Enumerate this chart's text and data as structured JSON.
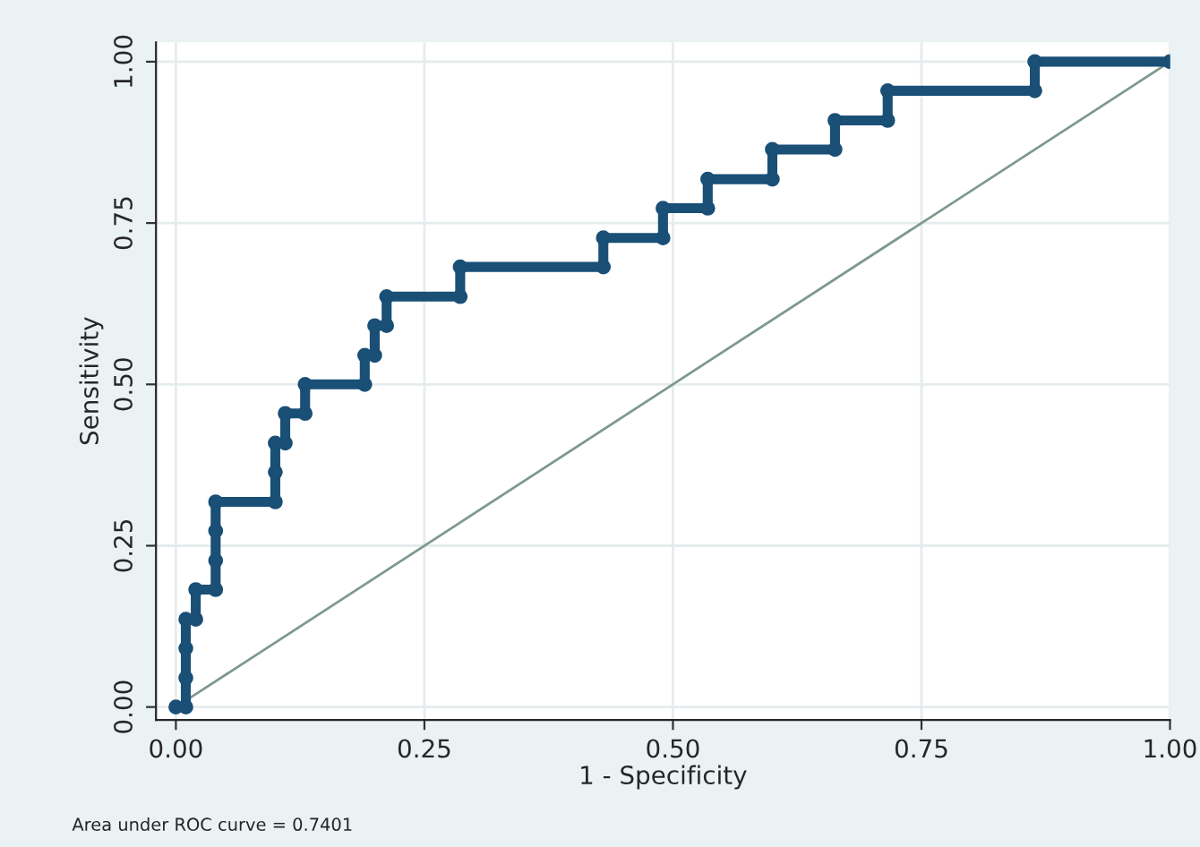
{
  "chart_data": {
    "type": "line",
    "xlabel": "1 - Specificity",
    "ylabel": "Sensitivity",
    "xlim": [
      -0.02,
      1.0
    ],
    "ylim": [
      -0.02,
      1.03
    ],
    "xticks": [
      {
        "value": 0,
        "label": "0.00"
      },
      {
        "value": 0.25,
        "label": "0.25"
      },
      {
        "value": 0.5,
        "label": "0.50"
      },
      {
        "value": 0.75,
        "label": "0.75"
      },
      {
        "value": 1,
        "label": "1.00"
      }
    ],
    "yticks": [
      {
        "value": 0,
        "label": "0.00"
      },
      {
        "value": 0.25,
        "label": "0.25"
      },
      {
        "value": 0.5,
        "label": "0.50"
      },
      {
        "value": 0.75,
        "label": "0.75"
      },
      {
        "value": 1,
        "label": "1.00"
      }
    ],
    "grid": true,
    "legend": false,
    "series": [
      {
        "color": "#1a4f76",
        "marker": "circle",
        "x": [
          0,
          0.01,
          0.01,
          0.01,
          0.01,
          0.02,
          0.02,
          0.04,
          0.04,
          0.04,
          0.04,
          0.1,
          0.1,
          0.1,
          0.11,
          0.11,
          0.13,
          0.13,
          0.19,
          0.19,
          0.2,
          0.2,
          0.212,
          0.212,
          0.286,
          0.286,
          0.43,
          0.43,
          0.49,
          0.49,
          0.535,
          0.535,
          0.6,
          0.6,
          0.663,
          0.663,
          0.716,
          0.716,
          0.864,
          0.864,
          1.0
        ],
        "values": [
          0,
          0,
          0.045,
          0.091,
          0.136,
          0.136,
          0.182,
          0.182,
          0.227,
          0.273,
          0.318,
          0.318,
          0.364,
          0.409,
          0.409,
          0.455,
          0.455,
          0.5,
          0.5,
          0.545,
          0.545,
          0.591,
          0.591,
          0.636,
          0.636,
          0.682,
          0.682,
          0.727,
          0.727,
          0.773,
          0.773,
          0.818,
          0.818,
          0.864,
          0.864,
          0.909,
          0.909,
          0.955,
          0.955,
          1.0,
          1.0
        ]
      },
      {
        "color": "#7d9a8c",
        "marker": "none",
        "x": [
          0,
          1
        ],
        "values": [
          0,
          1
        ]
      }
    ],
    "annotations": [
      "Area under ROC curve = 0.7401"
    ]
  }
}
